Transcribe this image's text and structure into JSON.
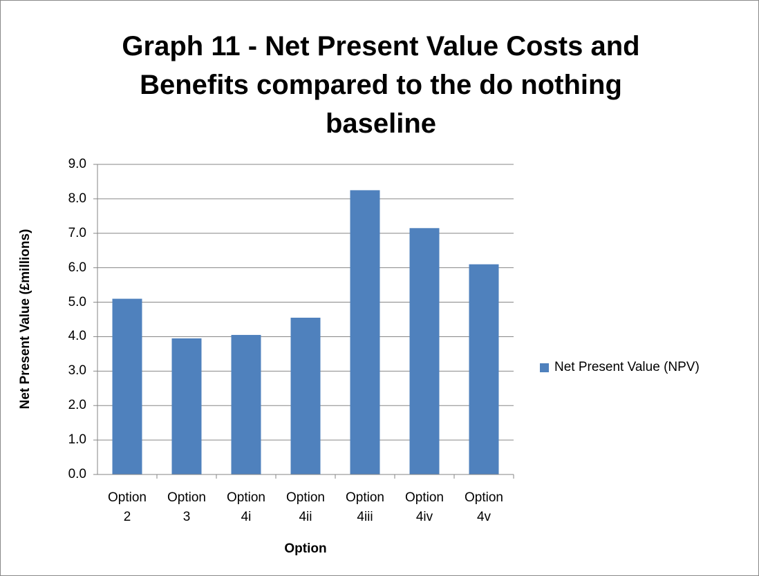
{
  "chart_data": {
    "type": "bar",
    "title": "Graph 11 - Net Present Value Costs and Benefits compared to the do nothing baseline",
    "x_label": "Option",
    "y_label": "Net Present Value (£millions)",
    "categories": [
      "Option 2",
      "Option 3",
      "Option 4i",
      "Option 4ii",
      "Option 4iii",
      "Option 4iv",
      "Option 4v"
    ],
    "series": [
      {
        "name": "Net Present Value (NPV)",
        "color": "#4f81bd",
        "values": [
          5.1,
          3.95,
          4.05,
          4.55,
          8.25,
          7.15,
          6.1
        ]
      }
    ],
    "ylim": [
      0,
      9
    ],
    "yticks": [
      {
        "value": 0,
        "label": "0.0"
      },
      {
        "value": 1,
        "label": "1.0"
      },
      {
        "value": 2,
        "label": "2.0"
      },
      {
        "value": 3,
        "label": "3.0"
      },
      {
        "value": 4,
        "label": "4.0"
      },
      {
        "value": 5,
        "label": "5.0"
      },
      {
        "value": 6,
        "label": "6.0"
      },
      {
        "value": 7,
        "label": "7.0"
      },
      {
        "value": 8,
        "label": "8.0"
      },
      {
        "value": 9,
        "label": "9.0"
      }
    ],
    "grid": true,
    "legend": "right"
  }
}
